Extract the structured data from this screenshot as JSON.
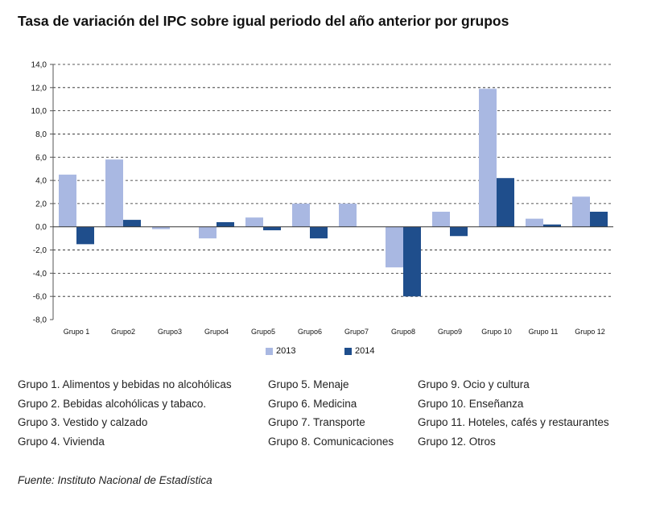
{
  "title": "Tasa de variación del IPC sobre igual periodo del año anterior por grupos",
  "chart_data": {
    "type": "bar",
    "categories": [
      "Grupo 1",
      "Grupo2",
      "Grupo3",
      "Grupo4",
      "Grupo5",
      "Grupo6",
      "Grupo7",
      "Grupo8",
      "Grupo9",
      "Grupo 10",
      "Grupo 11",
      "Grupo 12"
    ],
    "series": [
      {
        "name": "2013",
        "color": "#a9b8e2",
        "values": [
          4.5,
          5.8,
          -0.2,
          -1.0,
          0.8,
          2.0,
          2.0,
          -3.5,
          1.3,
          11.9,
          0.7,
          2.6
        ]
      },
      {
        "name": "2014",
        "color": "#1f4e8c",
        "values": [
          -1.5,
          0.6,
          0.0,
          0.4,
          -0.3,
          -1.0,
          0.0,
          -6.0,
          -0.8,
          4.2,
          0.2,
          1.3
        ]
      }
    ],
    "ylim": [
      -8,
      14
    ],
    "yticks": [
      "14,0",
      "12,0",
      "10,0",
      "8,0",
      "6,0",
      "4,0",
      "2,0",
      "0,0",
      "-2,0",
      "-4,0",
      "-6,0",
      "-8,0"
    ],
    "grid": true,
    "legend_position": "bottom"
  },
  "groups": {
    "col1": [
      "Grupo 1. Alimentos y bebidas no alcohólicas",
      "Grupo 2. Bebidas alcohólicas y  tabaco.",
      "Grupo 3. Vestido y calzado",
      "Grupo 4. Vivienda"
    ],
    "col2": [
      "Grupo 5. Menaje",
      "Grupo 6. Medicina",
      "Grupo 7. Transporte",
      "Grupo 8. Comunicaciones"
    ],
    "col3": [
      "Grupo 9. Ocio y cultura",
      "Grupo 10. Enseñanza",
      "Grupo 11. Hoteles, cafés y restaurantes",
      "Grupo 12. Otros"
    ]
  },
  "source": "Fuente: Instituto Nacional de Estadística"
}
